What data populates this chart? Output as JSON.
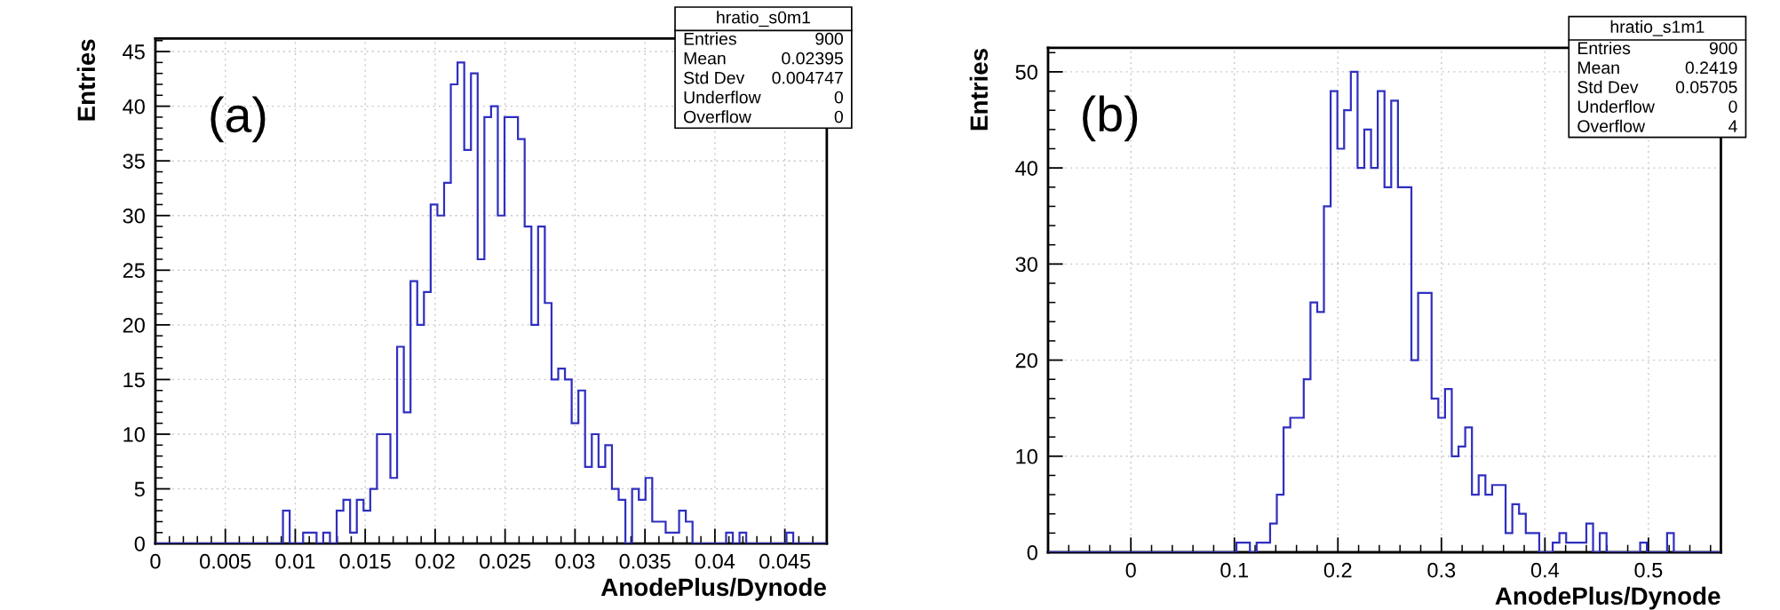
{
  "chart_data": [
    {
      "type": "histogram",
      "title": "hratio_s0m1",
      "xlabel": "AnodePlus/Dynode",
      "ylabel": "Entries",
      "color": "#2f2fc0",
      "grid": true,
      "annotations": [
        "(a)",
        "Entries",
        "900",
        "Mean",
        "0.02395",
        "Std Dev",
        "0.004747",
        "Underflow",
        "0",
        "Overflow",
        "0"
      ],
      "xlim": [
        0,
        0.048
      ],
      "ylim": [
        0,
        46.2
      ],
      "xticks": [
        0,
        0.005,
        0.01,
        0.015,
        0.02,
        0.025,
        0.03,
        0.035,
        0.04,
        0.045
      ],
      "yticks": [
        0,
        5,
        10,
        15,
        20,
        25,
        30,
        35,
        40,
        45
      ],
      "bins": [
        0,
        0.00048,
        0.00096,
        0.00144,
        0.00192,
        0.0024,
        0.00288,
        0.00336,
        0.00384,
        0.00432,
        0.0048,
        0.00528,
        0.00576,
        0.00624,
        0.00672,
        0.0072,
        0.00768,
        0.00816,
        0.00864,
        0.00912,
        0.0096,
        0.01008,
        0.01056,
        0.01104,
        0.01152,
        0.012,
        0.01248,
        0.01296,
        0.01344,
        0.01392,
        0.0144,
        0.01488,
        0.01536,
        0.01584,
        0.01632,
        0.0168,
        0.01728,
        0.01776,
        0.01824,
        0.01872,
        0.0192,
        0.01968,
        0.02016,
        0.02064,
        0.02112,
        0.0216,
        0.02208,
        0.02256,
        0.02304,
        0.02352,
        0.024,
        0.02448,
        0.02496,
        0.02544,
        0.02592,
        0.0264,
        0.02688,
        0.02736,
        0.02784,
        0.02832,
        0.0288,
        0.02928,
        0.02976,
        0.03024,
        0.03072,
        0.0312,
        0.03168,
        0.03216,
        0.03264,
        0.03312,
        0.0336,
        0.03408,
        0.03456,
        0.03504,
        0.03552,
        0.036,
        0.03648,
        0.03696,
        0.03744,
        0.03792,
        0.0384,
        0.03888,
        0.03936,
        0.03984,
        0.04032,
        0.0408,
        0.04128,
        0.04176,
        0.04224,
        0.04272,
        0.0432,
        0.04368,
        0.04416,
        0.04464,
        0.04512,
        0.0456,
        0.04608,
        0.04656,
        0.04704,
        0.04752,
        0.048
      ],
      "values": [
        0,
        0,
        0,
        0,
        0,
        0,
        0,
        0,
        0,
        0,
        0,
        0,
        0,
        0,
        0,
        0,
        0,
        0,
        0,
        3,
        0,
        0,
        1,
        1,
        0,
        1,
        0,
        3,
        4,
        1,
        4,
        3,
        5,
        10,
        10,
        6,
        18,
        12,
        24,
        20,
        23,
        31,
        30,
        33,
        42,
        44,
        36,
        43,
        26,
        39,
        40,
        30,
        39,
        39,
        37,
        29,
        20,
        29,
        22,
        15,
        16,
        15,
        11,
        14,
        7,
        10,
        7,
        9,
        5,
        4,
        0,
        5,
        4,
        6,
        2,
        2,
        1,
        1,
        3,
        2,
        0,
        0,
        0,
        0,
        0,
        1,
        0,
        1,
        0,
        0,
        0,
        0,
        0,
        0,
        1,
        0,
        0,
        0,
        0,
        0
      ]
    },
    {
      "type": "histogram",
      "title": "hratio_s1m1",
      "xlabel": "AnodePlus/Dynode",
      "ylabel": "Entries",
      "color": "#2f2fc0",
      "grid": true,
      "annotations": [
        "(b)",
        "Entries",
        "900",
        "Mean",
        "0.2419",
        "Std Dev",
        "0.05705",
        "Underflow",
        "0",
        "Overflow",
        "4"
      ],
      "xlim": [
        -0.08,
        0.57
      ],
      "ylim": [
        0,
        52.5
      ],
      "xticks": [
        0,
        0.1,
        0.2,
        0.3,
        0.4,
        0.5
      ],
      "yticks": [
        0,
        10,
        20,
        30,
        40,
        50
      ],
      "bins": [
        -0.08,
        -0.0735,
        -0.067,
        -0.0605,
        -0.054,
        -0.0475,
        -0.041,
        -0.0345,
        -0.028,
        -0.0215,
        -0.015,
        -0.0085,
        -0.002,
        0.0045,
        0.011,
        0.0175,
        0.024,
        0.0305,
        0.037,
        0.0435,
        0.05,
        0.0565,
        0.063,
        0.0695,
        0.076,
        0.0825,
        0.089,
        0.0955,
        0.102,
        0.1085,
        0.115,
        0.1215,
        0.128,
        0.1345,
        0.141,
        0.1475,
        0.154,
        0.1605,
        0.167,
        0.1735,
        0.18,
        0.1865,
        0.193,
        0.1995,
        0.206,
        0.2125,
        0.219,
        0.2255,
        0.232,
        0.2385,
        0.245,
        0.2515,
        0.258,
        0.2645,
        0.271,
        0.2775,
        0.284,
        0.2905,
        0.297,
        0.3035,
        0.31,
        0.3165,
        0.323,
        0.3295,
        0.336,
        0.3425,
        0.349,
        0.3555,
        0.362,
        0.3685,
        0.375,
        0.3815,
        0.388,
        0.3945,
        0.401,
        0.4075,
        0.414,
        0.4205,
        0.427,
        0.4335,
        0.44,
        0.4465,
        0.453,
        0.4595,
        0.466,
        0.4725,
        0.479,
        0.4855,
        0.492,
        0.4985,
        0.505,
        0.5115,
        0.518,
        0.5245,
        0.531,
        0.5375,
        0.544,
        0.5505,
        0.557,
        0.5635,
        0.57
      ],
      "values": [
        0,
        0,
        0,
        0,
        0,
        0,
        0,
        0,
        0,
        0,
        0,
        0,
        0,
        0,
        0,
        0,
        0,
        0,
        0,
        0,
        0,
        0,
        0,
        0,
        0,
        0,
        0,
        0,
        1,
        1,
        0,
        1,
        1,
        3,
        6,
        13,
        14,
        14,
        18,
        26,
        25,
        36,
        48,
        42,
        46,
        50,
        40,
        44,
        40,
        48,
        38,
        47,
        38,
        38,
        20,
        27,
        27,
        16,
        14,
        17,
        10,
        11,
        13,
        6,
        8,
        6,
        7,
        7,
        2,
        5,
        4,
        2,
        2,
        0,
        0,
        1,
        2,
        1,
        1,
        1,
        3,
        0,
        2,
        0,
        0,
        0,
        0,
        0,
        1,
        0,
        0,
        0,
        2,
        0,
        0,
        0,
        0,
        0,
        0,
        0
      ]
    }
  ]
}
